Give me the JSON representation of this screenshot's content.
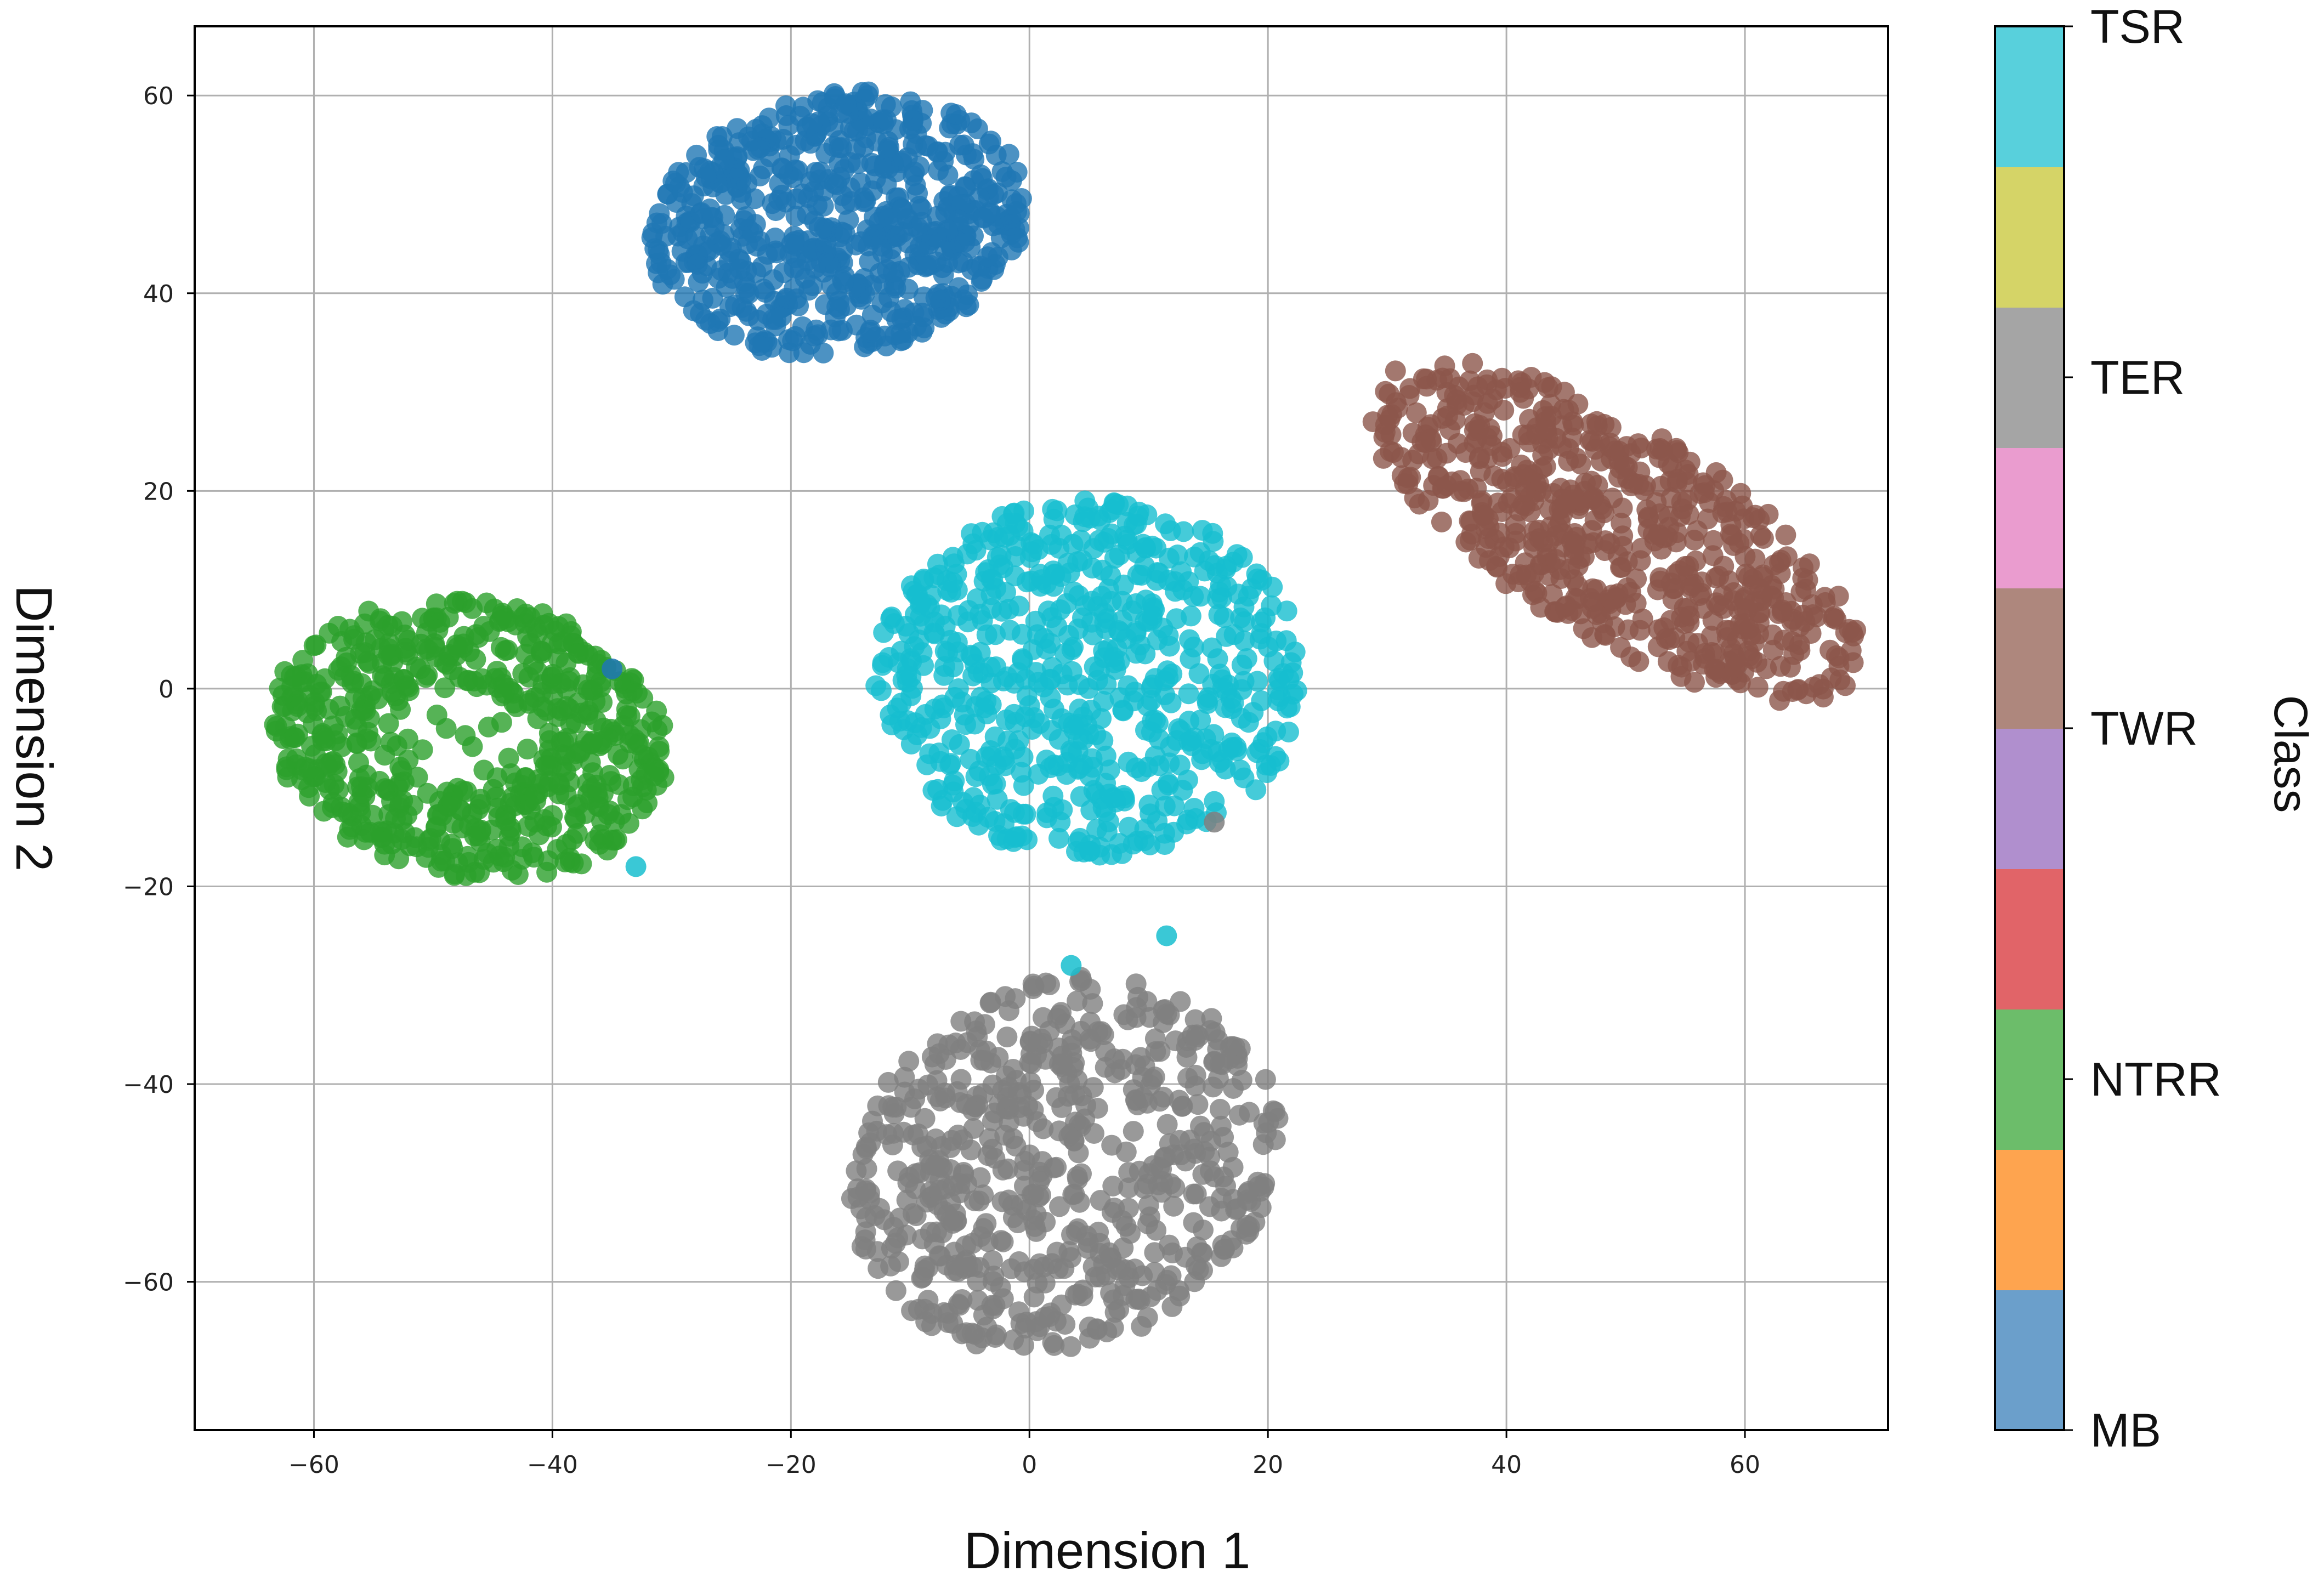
{
  "chart_data": {
    "type": "scatter",
    "xlabel": "Dimension 1",
    "ylabel": "Dimension 2",
    "xlim": [
      -70,
      72
    ],
    "ylim": [
      -75,
      67
    ],
    "x_ticks": [
      -60,
      -40,
      -20,
      0,
      20,
      40,
      60
    ],
    "y_ticks": [
      -60,
      -40,
      -20,
      0,
      20,
      40,
      60
    ],
    "x_tick_labels": [
      "−60",
      "−40",
      "−20",
      "0",
      "20",
      "40",
      "60"
    ],
    "y_tick_labels": [
      "−60",
      "−40",
      "−20",
      "0",
      "20",
      "40",
      "60"
    ],
    "grid": true,
    "colorbar": {
      "title": "Class",
      "tick_labels": [
        "MB",
        "NTRR",
        "TWR",
        "TER",
        "TSR"
      ],
      "tick_positions": [
        0,
        0.25,
        0.5,
        0.75,
        1.0
      ],
      "segment_colors": [
        "#6b9fcb",
        "#fea44f",
        "#6cbd6a",
        "#e16468",
        "#b08fce",
        "#ae877d",
        "#ea9ccf",
        "#a5a5a5",
        "#d5d467",
        "#58d0dc"
      ]
    },
    "series": [
      {
        "color": "#1f77b4",
        "count": 650,
        "center": [
          -16,
          47
        ],
        "spread": [
          16,
          13
        ],
        "rotate": 20,
        "shape": "blob"
      },
      {
        "color": "#17becf",
        "count": 650,
        "center": [
          5,
          1
        ],
        "spread": [
          18,
          18
        ],
        "rotate": -5,
        "shape": "blob"
      },
      {
        "color": "#2ca02c",
        "count": 620,
        "center": [
          -47,
          -5
        ],
        "spread": [
          17,
          14
        ],
        "rotate": -20,
        "shape": "ring"
      },
      {
        "color": "#7f7f7f",
        "count": 620,
        "center": [
          3,
          -48
        ],
        "spread": [
          17,
          20
        ],
        "rotate": -35,
        "shape": "blob"
      },
      {
        "color": "#8c564b",
        "count": 620,
        "center": [
          49,
          16
        ],
        "spread": [
          25,
          10
        ],
        "rotate": -38,
        "shape": "blob"
      }
    ],
    "outliers": [
      {
        "x": -35,
        "y": 2,
        "color": "#1f77b4"
      },
      {
        "x": -33,
        "y": -18,
        "color": "#17becf"
      },
      {
        "x": 3.5,
        "y": -28,
        "color": "#17becf"
      },
      {
        "x": 11.5,
        "y": -25,
        "color": "#17becf"
      },
      {
        "x": 15.5,
        "y": -13.5,
        "color": "#7f7f7f"
      }
    ]
  }
}
